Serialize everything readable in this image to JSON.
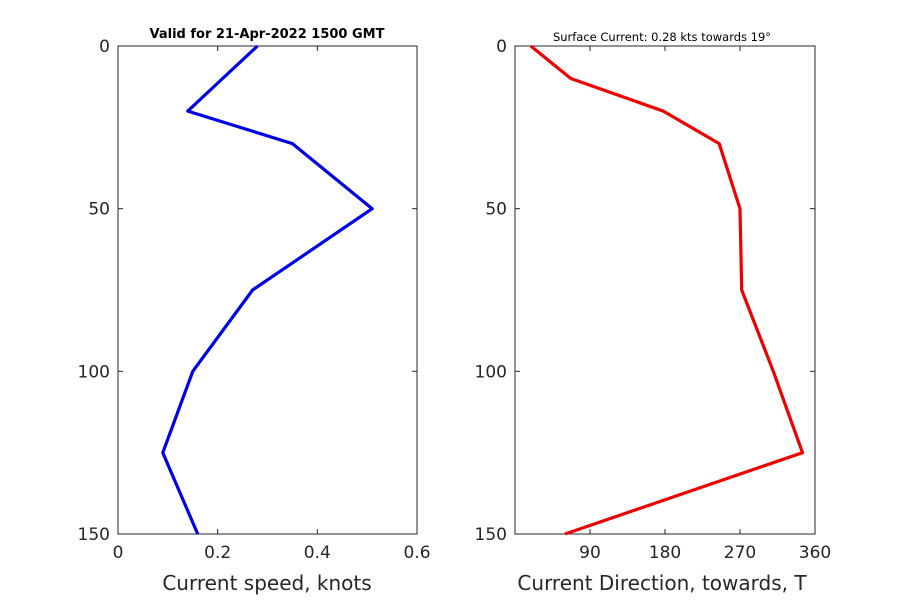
{
  "chart_data": [
    {
      "type": "line",
      "title": "Valid for 21-Apr-2022 1500 GMT",
      "xlabel": "Current speed, knots",
      "ylabel": "",
      "xlim": [
        0,
        0.6
      ],
      "ylim": [
        0,
        150
      ],
      "y_reversed": true,
      "grid": false,
      "xticks": [
        0,
        0.2,
        0.4,
        0.6
      ],
      "xtick_labels": [
        "0",
        "0.2",
        "0.4",
        "0.6"
      ],
      "yticks": [
        0,
        50,
        100,
        150
      ],
      "ytick_labels": [
        "0",
        "50",
        "100",
        "150"
      ],
      "series": [
        {
          "color": "#0000e6",
          "x": [
            0.28,
            0.21,
            0.14,
            0.35,
            0.51,
            0.27,
            0.15,
            0.09,
            0.16
          ],
          "y": [
            0,
            10,
            20,
            30,
            50,
            75,
            100,
            125,
            150
          ]
        }
      ]
    },
    {
      "type": "line",
      "title": "Surface Current: 0.28 kts towards 19°",
      "xlabel": "Current Direction, towards, T",
      "ylabel": "",
      "xlim": [
        0,
        360
      ],
      "ylim": [
        0,
        150
      ],
      "y_reversed": true,
      "grid": false,
      "xticks": [
        90,
        180,
        270,
        360
      ],
      "xtick_labels": [
        "90",
        "180",
        "270",
        "360"
      ],
      "yticks": [
        0,
        50,
        100,
        150
      ],
      "ytick_labels": [
        "0",
        "50",
        "100",
        "150"
      ],
      "series": [
        {
          "color": "#ee0000",
          "x": [
            19,
            67,
            178,
            245,
            270,
            272,
            310,
            345,
            60
          ],
          "y": [
            0,
            10,
            20,
            30,
            50,
            75,
            100,
            125,
            150
          ]
        }
      ]
    }
  ]
}
